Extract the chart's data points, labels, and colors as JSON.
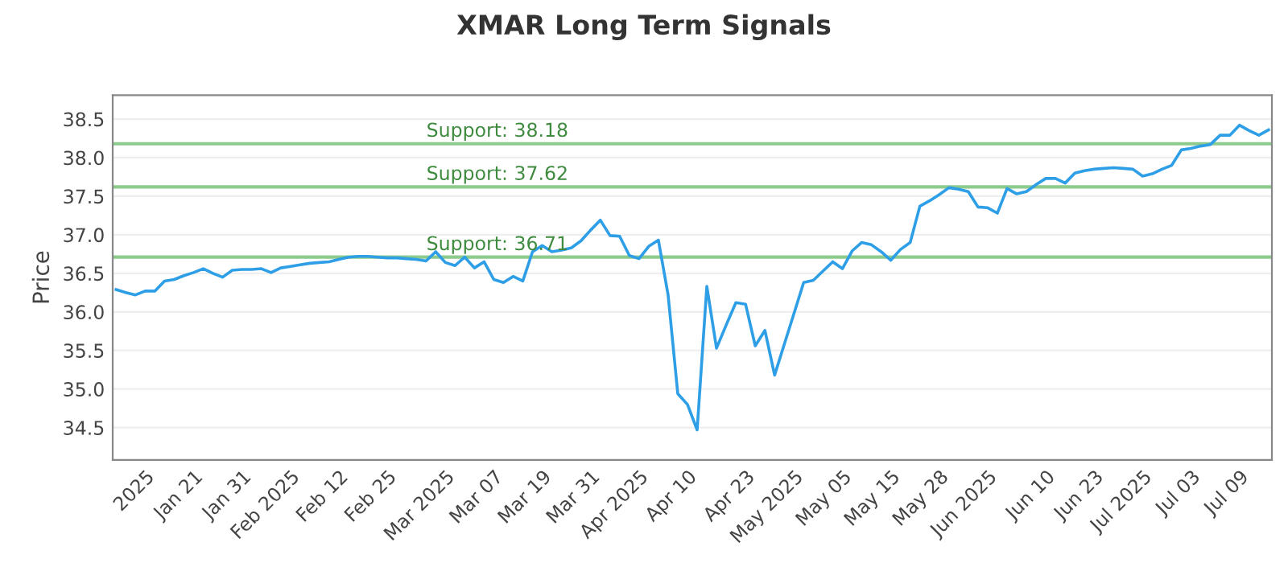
{
  "chart_data": {
    "type": "line",
    "title": "XMAR Long Term Signals",
    "ylabel": "Price",
    "categories": [
      null,
      null,
      null,
      "2025",
      null,
      null,
      null,
      null,
      "Jan 21",
      null,
      null,
      null,
      null,
      "Jan 31",
      null,
      null,
      null,
      null,
      "Feb 2025",
      null,
      null,
      null,
      null,
      "Feb 12",
      null,
      null,
      null,
      null,
      "Feb 25",
      null,
      null,
      null,
      null,
      null,
      "Mar 2025",
      null,
      null,
      null,
      null,
      "Mar 07",
      null,
      null,
      null,
      null,
      "Mar 19",
      null,
      null,
      null,
      null,
      "Mar 31",
      null,
      null,
      null,
      null,
      "Apr 2025",
      null,
      null,
      null,
      null,
      "Apr 10",
      null,
      null,
      null,
      null,
      null,
      "Apr 23",
      null,
      null,
      null,
      null,
      "May 2025",
      null,
      null,
      null,
      null,
      "May 05",
      null,
      null,
      null,
      null,
      "May 15",
      null,
      null,
      null,
      null,
      "May 28",
      null,
      null,
      null,
      null,
      "Jun 2025",
      null,
      null,
      null,
      null,
      null,
      "Jun 10",
      null,
      null,
      null,
      null,
      "Jun 23",
      null,
      null,
      null,
      null,
      "Jul 2025",
      null,
      null,
      null,
      null,
      "Jul 03",
      null,
      null,
      null,
      null,
      "Jul 09",
      null,
      null,
      null
    ],
    "series": [
      {
        "color": "#2e9fe6",
        "values": [
          36.29,
          36.25,
          36.22,
          36.27,
          36.27,
          36.4,
          36.42,
          36.47,
          36.51,
          36.56,
          36.5,
          36.45,
          36.54,
          36.55,
          36.55,
          36.56,
          36.51,
          36.57,
          36.59,
          36.61,
          36.63,
          36.64,
          36.65,
          36.68,
          36.71,
          36.72,
          36.72,
          36.71,
          36.7,
          36.7,
          36.69,
          36.68,
          36.66,
          36.78,
          36.64,
          36.6,
          36.71,
          36.57,
          36.65,
          36.42,
          36.38,
          36.46,
          36.4,
          36.78,
          36.86,
          36.78,
          36.8,
          36.83,
          36.92,
          37.06,
          37.19,
          36.99,
          36.98,
          36.73,
          36.69,
          36.85,
          36.93,
          36.22,
          34.94,
          34.8,
          34.47,
          36.33,
          35.53,
          35.83,
          36.12,
          36.1,
          35.56,
          35.76,
          35.18,
          35.58,
          35.98,
          36.38,
          36.41,
          36.53,
          36.65,
          36.56,
          36.79,
          36.9,
          36.87,
          36.78,
          36.67,
          36.81,
          36.9,
          37.37,
          37.44,
          37.52,
          37.61,
          37.59,
          37.56,
          37.36,
          37.35,
          37.28,
          37.6,
          37.53,
          37.56,
          37.65,
          37.73,
          37.73,
          37.67,
          37.8,
          37.83,
          37.85,
          37.86,
          37.87,
          37.86,
          37.85,
          37.76,
          37.79,
          37.85,
          37.9,
          38.1,
          38.12,
          38.15,
          38.17,
          38.29,
          38.29,
          38.42,
          38.35,
          38.29,
          38.36
        ]
      }
    ],
    "ylim": [
      34.08,
      38.81
    ],
    "yticks": [
      34.5,
      {
        "value": 35,
        "label": "35.0"
      },
      35.5,
      {
        "value": 36,
        "label": "36.0"
      },
      36.5,
      {
        "value": 37,
        "label": "37.0"
      },
      37.5,
      {
        "value": 38,
        "label": "38.0"
      },
      38.5
    ],
    "grid": "y",
    "ref_lines": [
      {
        "axis": "y",
        "value": 36.71,
        "label": "Support: 36.71",
        "color": "#8ccb8c"
      },
      {
        "axis": "y",
        "value": 37.62,
        "label": "Support: 37.62",
        "color": "#8ccb8c"
      },
      {
        "axis": "y",
        "value": 38.18,
        "label": "Support: 38.18",
        "color": "#8ccb8c"
      }
    ]
  }
}
